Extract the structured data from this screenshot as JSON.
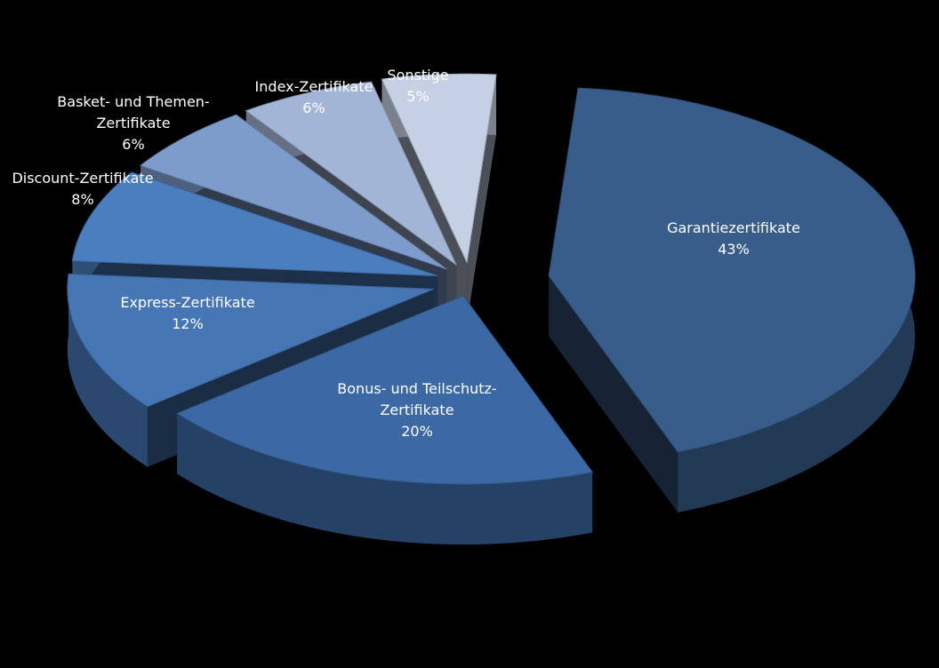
{
  "chart_data": {
    "type": "pie",
    "title": "",
    "slices": [
      {
        "label": "Garantiezertifikate",
        "value": 43,
        "value_label": "43%",
        "color": "#385d8a",
        "label_color": "#ffffff",
        "explode": "large"
      },
      {
        "label": "Bonus- und Teilschutz-Zertifikate",
        "value": 20,
        "value_label": "20%",
        "color": "#3c69a4",
        "label_color": "#ffffff"
      },
      {
        "label": "Express-Zertifikate",
        "value": 12,
        "value_label": "12%",
        "color": "#4676b4",
        "label_color": "#ffffff"
      },
      {
        "label": "Discount-Zertifikate",
        "value": 8,
        "value_label": "8%",
        "color": "#4a7ebf",
        "label_color": "#ffffff"
      },
      {
        "label": "Basket- und Themen-Zertifikate",
        "value": 6,
        "value_label": "6%",
        "color": "#7d9bcb",
        "label_color": "#ffffff"
      },
      {
        "label": "Index-Zertifikate",
        "value": 6,
        "value_label": "6%",
        "color": "#a3b5d6",
        "label_color": "#ffffff"
      },
      {
        "label": "Sonstige",
        "value": 5,
        "value_label": "5%",
        "color": "#c5d0e4",
        "label_color": "#ffffff"
      }
    ],
    "style": "3d-exploded",
    "background": "#000000",
    "legend": "none"
  }
}
